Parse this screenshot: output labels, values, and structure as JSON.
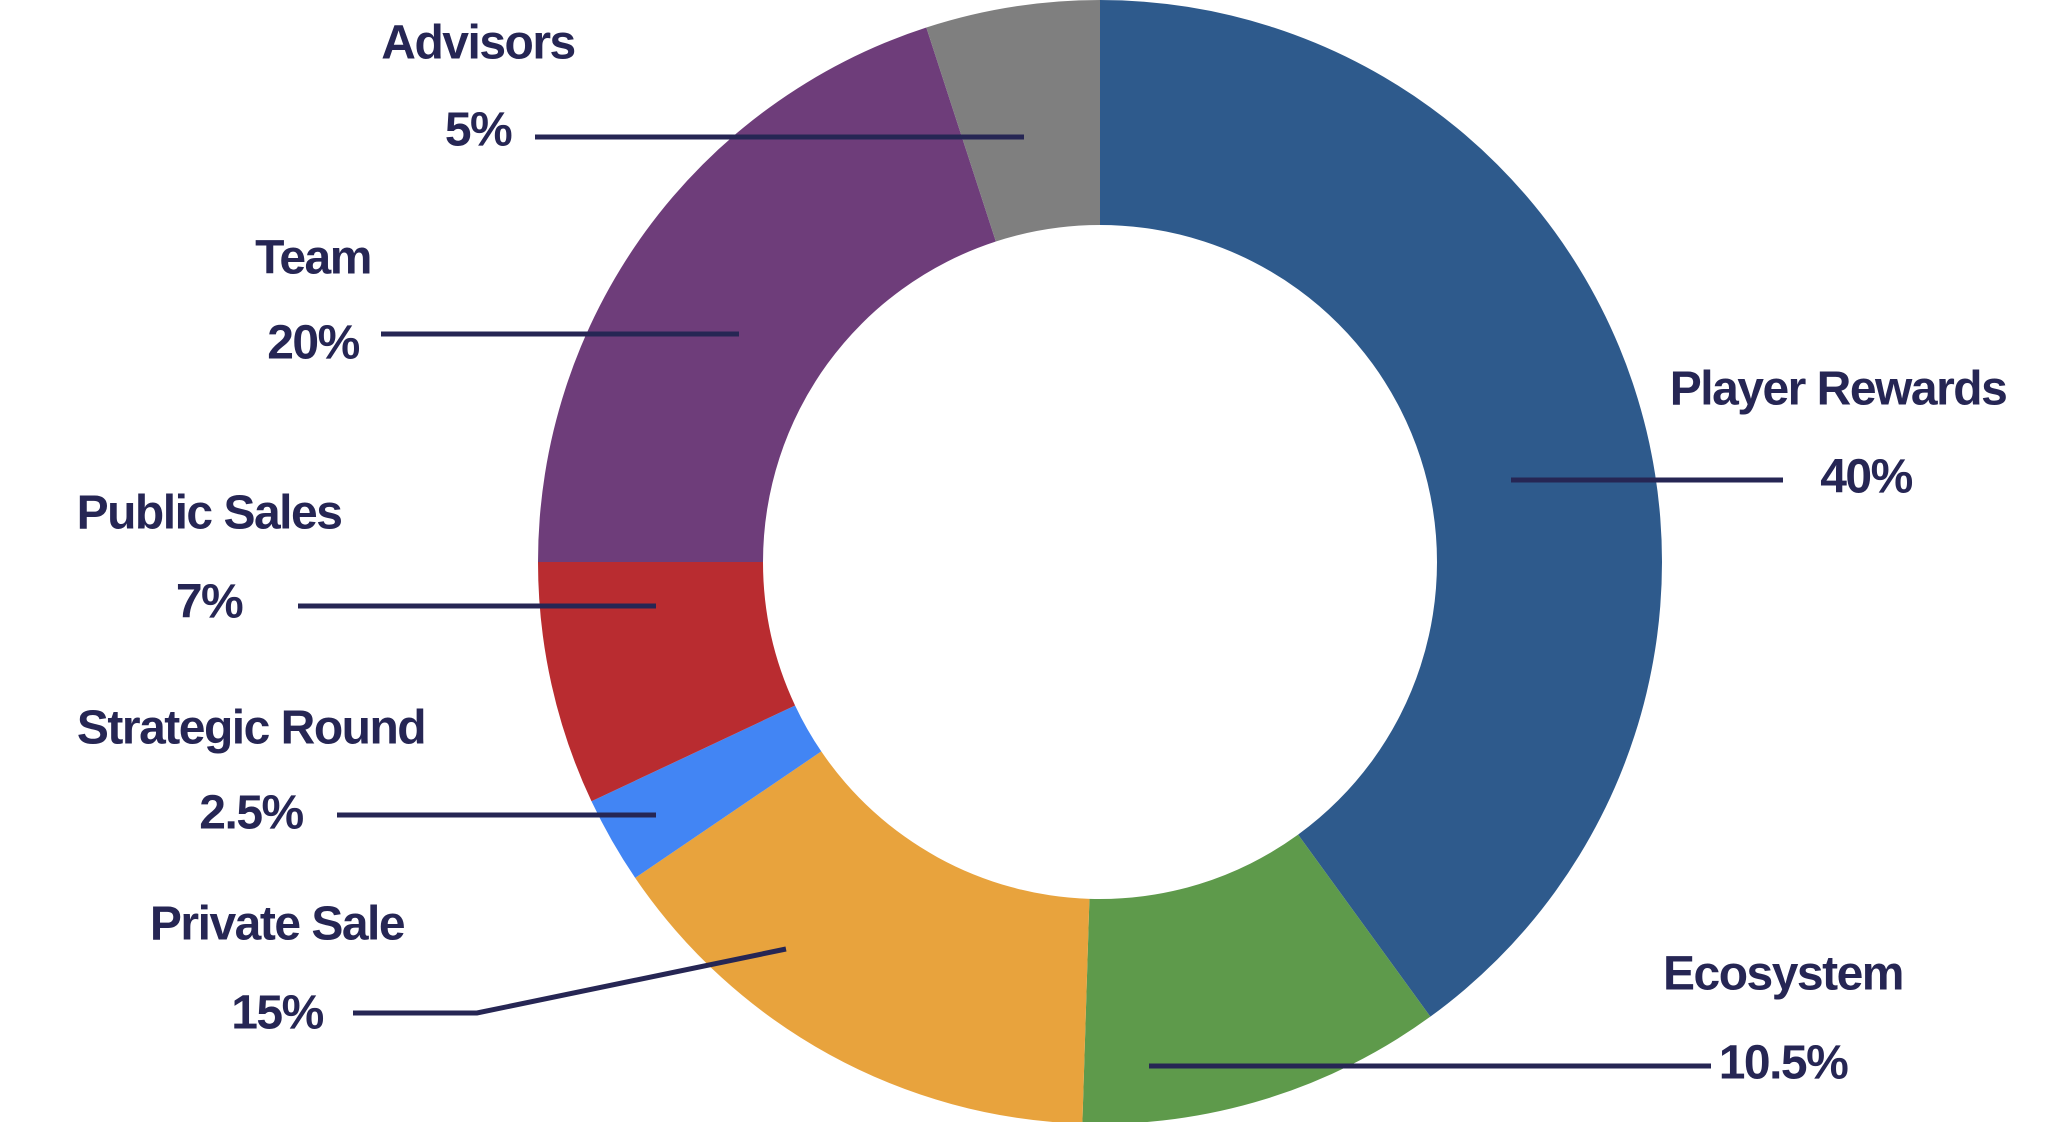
{
  "chart_data": {
    "type": "donut",
    "categories": [
      "Player Rewards",
      "Ecosystem",
      "Private Sale",
      "Strategic Round",
      "Public Sales",
      "Team",
      "Advisors"
    ],
    "values": [
      40,
      10.5,
      15,
      2.5,
      7,
      20,
      5
    ],
    "value_labels": [
      "40%",
      "10.5%",
      "15%",
      "2.5%",
      "7%",
      "20%",
      "5%"
    ],
    "colors": [
      "#2e5a8c",
      "#5e9a4b",
      "#e8a33d",
      "#4285f4",
      "#b92c30",
      "#6e3d7a",
      "#7f7f7f"
    ]
  }
}
